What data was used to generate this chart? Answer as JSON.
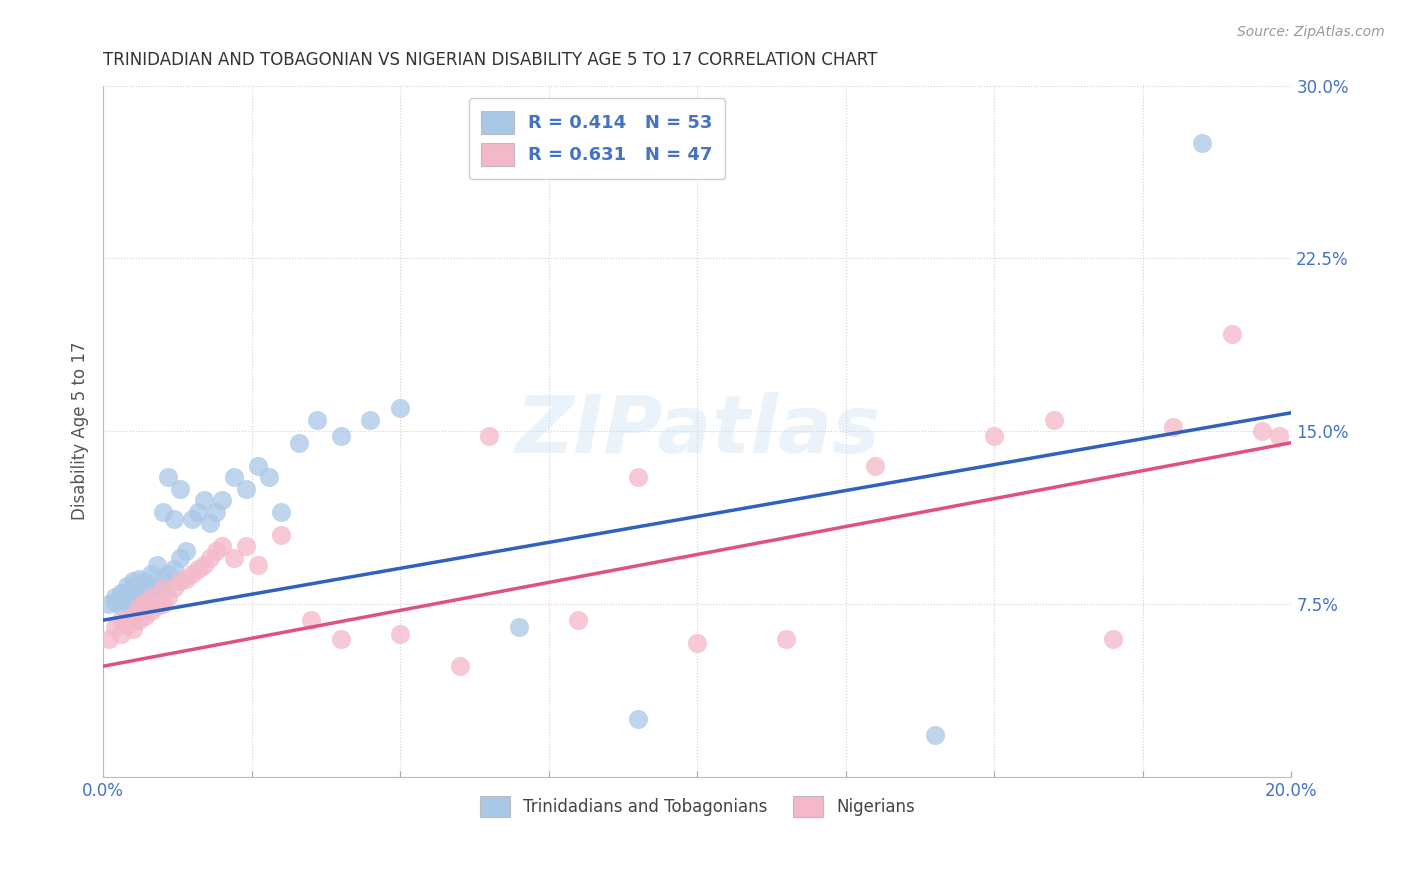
{
  "title": "TRINIDADIAN AND TOBAGONIAN VS NIGERIAN DISABILITY AGE 5 TO 17 CORRELATION CHART",
  "source": "Source: ZipAtlas.com",
  "ylabel": "Disability Age 5 to 17",
  "xlim": [
    0.0,
    0.2
  ],
  "ylim": [
    0.0,
    0.3
  ],
  "xticks": [
    0.0,
    0.025,
    0.05,
    0.075,
    0.1,
    0.125,
    0.15,
    0.175,
    0.2
  ],
  "xticklabels": [
    "0.0%",
    "",
    "",
    "",
    "",
    "",
    "",
    "",
    "20.0%"
  ],
  "yticks": [
    0.0,
    0.075,
    0.15,
    0.225,
    0.3
  ],
  "yticklabels": [
    "",
    "7.5%",
    "15.0%",
    "22.5%",
    "30.0%"
  ],
  "watermark": "ZIPatlas",
  "legend_r1": "R = 0.414",
  "legend_n1": "N = 53",
  "legend_r2": "R = 0.631",
  "legend_n2": "N = 47",
  "blue_color": "#a8c8e8",
  "pink_color": "#f4b8c8",
  "blue_line_color": "#3060c0",
  "pink_line_color": "#e05080",
  "title_color": "#333333",
  "axis_label_color": "#555555",
  "tick_color": "#4472C4",
  "legend_text_color": "#4472C4",
  "grid_color": "#cccccc",
  "background_color": "#ffffff",
  "blue_scatter_x": [
    0.001,
    0.002,
    0.002,
    0.003,
    0.003,
    0.003,
    0.004,
    0.004,
    0.004,
    0.005,
    0.005,
    0.005,
    0.005,
    0.006,
    0.006,
    0.006,
    0.006,
    0.007,
    0.007,
    0.007,
    0.008,
    0.008,
    0.009,
    0.009,
    0.01,
    0.01,
    0.011,
    0.011,
    0.012,
    0.012,
    0.013,
    0.013,
    0.014,
    0.015,
    0.016,
    0.017,
    0.018,
    0.019,
    0.02,
    0.022,
    0.024,
    0.026,
    0.028,
    0.03,
    0.033,
    0.036,
    0.04,
    0.045,
    0.05,
    0.07,
    0.09,
    0.14,
    0.185
  ],
  "blue_scatter_y": [
    0.075,
    0.076,
    0.078,
    0.074,
    0.077,
    0.08,
    0.076,
    0.08,
    0.083,
    0.075,
    0.079,
    0.082,
    0.085,
    0.074,
    0.078,
    0.082,
    0.086,
    0.076,
    0.08,
    0.085,
    0.082,
    0.088,
    0.082,
    0.092,
    0.085,
    0.115,
    0.088,
    0.13,
    0.09,
    0.112,
    0.095,
    0.125,
    0.098,
    0.112,
    0.115,
    0.12,
    0.11,
    0.115,
    0.12,
    0.13,
    0.125,
    0.135,
    0.13,
    0.115,
    0.145,
    0.155,
    0.148,
    0.155,
    0.16,
    0.065,
    0.025,
    0.018,
    0.275
  ],
  "pink_scatter_x": [
    0.001,
    0.002,
    0.003,
    0.003,
    0.004,
    0.005,
    0.005,
    0.006,
    0.006,
    0.007,
    0.007,
    0.008,
    0.008,
    0.009,
    0.01,
    0.01,
    0.011,
    0.012,
    0.013,
    0.014,
    0.015,
    0.016,
    0.017,
    0.018,
    0.019,
    0.02,
    0.022,
    0.024,
    0.026,
    0.03,
    0.035,
    0.04,
    0.05,
    0.06,
    0.065,
    0.08,
    0.09,
    0.1,
    0.115,
    0.13,
    0.15,
    0.16,
    0.17,
    0.18,
    0.19,
    0.195,
    0.198
  ],
  "pink_scatter_y": [
    0.06,
    0.065,
    0.062,
    0.068,
    0.066,
    0.064,
    0.07,
    0.068,
    0.074,
    0.07,
    0.076,
    0.072,
    0.078,
    0.074,
    0.075,
    0.082,
    0.078,
    0.082,
    0.085,
    0.086,
    0.088,
    0.09,
    0.092,
    0.095,
    0.098,
    0.1,
    0.095,
    0.1,
    0.092,
    0.105,
    0.068,
    0.06,
    0.062,
    0.048,
    0.148,
    0.068,
    0.13,
    0.058,
    0.06,
    0.135,
    0.148,
    0.155,
    0.06,
    0.152,
    0.192,
    0.15,
    0.148
  ],
  "blue_trend_x": [
    0.0,
    0.2
  ],
  "blue_trend_y": [
    0.068,
    0.158
  ],
  "pink_trend_x": [
    0.0,
    0.2
  ],
  "pink_trend_y": [
    0.048,
    0.145
  ]
}
